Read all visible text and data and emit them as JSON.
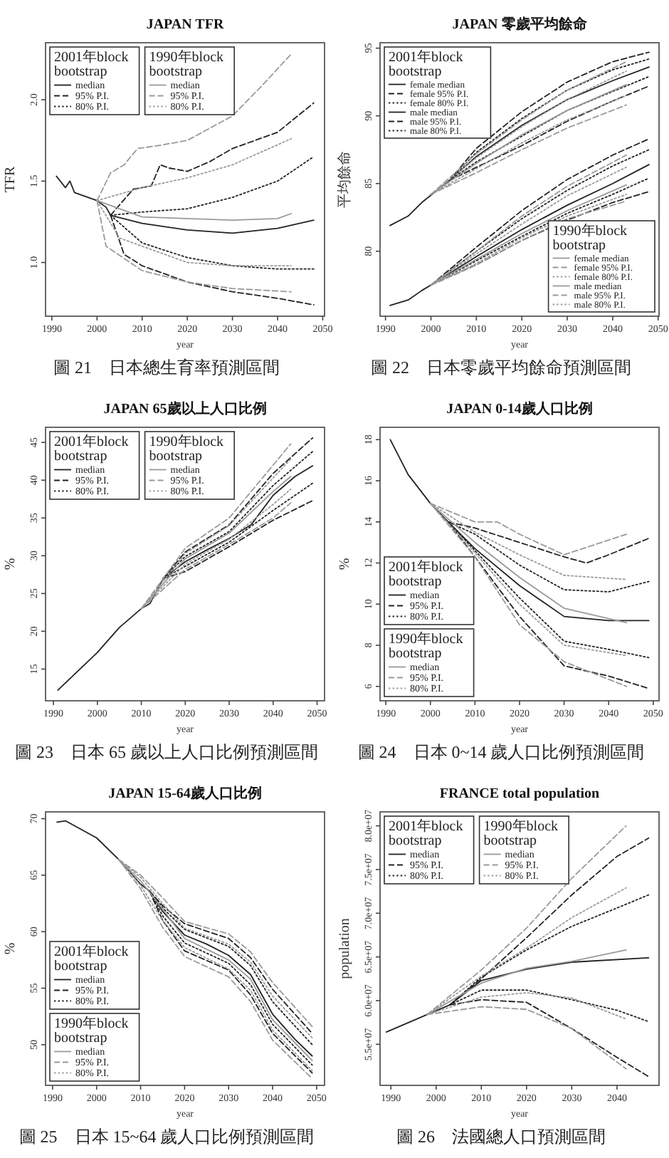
{
  "chart_data": [
    {
      "type": "line",
      "title": "JAPAN TFR",
      "xlabel": "year",
      "ylabel": "TFR",
      "xlim": [
        1988.6,
        2050.4
      ],
      "ylim": [
        0.67,
        2.35
      ],
      "xticks": [
        1990,
        2000,
        2010,
        2020,
        2030,
        2040,
        2050
      ],
      "yticks": [
        {
          "value": 1,
          "label": "1.0"
        },
        {
          "value": 1.5,
          "label": "1.5"
        },
        {
          "value": 2,
          "label": "2.0"
        }
      ],
      "legend": "top left",
      "legend_title": [
        "2001年block bootstrap",
        "1990年block bootstrap"
      ],
      "annotations": [
        "圖 21　日本總生育率預測區間"
      ],
      "series": [
        {
          "name": "median",
          "color": "#222222",
          "line_style": "solid",
          "x": [
            1991,
            1993,
            1994,
            1995,
            1997,
            2000,
            2002,
            2003,
            2010,
            2020,
            2030,
            2040,
            2048
          ],
          "values": [
            1.53,
            1.46,
            1.5,
            1.43,
            1.41,
            1.38,
            1.34,
            1.29,
            1.24,
            1.2,
            1.18,
            1.21,
            1.26
          ]
        },
        {
          "name": "95% P.I.",
          "color": "#222222",
          "line_style": "dashed",
          "x": [
            2003,
            2008,
            2012,
            2014,
            2016,
            2020,
            2025,
            2030,
            2040,
            2048
          ],
          "values": [
            1.29,
            1.45,
            1.47,
            1.6,
            1.58,
            1.56,
            1.62,
            1.7,
            1.8,
            1.98
          ]
        },
        {
          "color": "#222222",
          "line_style": "dashed",
          "x": [
            2003,
            2006,
            2010,
            2020,
            2030,
            2040,
            2048
          ],
          "values": [
            1.29,
            1.05,
            0.98,
            0.88,
            0.82,
            0.78,
            0.74
          ]
        },
        {
          "name": "80% P.I.",
          "color": "#222222",
          "line_style": "dotted",
          "x": [
            2003,
            2010,
            2020,
            2030,
            2040,
            2048
          ],
          "values": [
            1.29,
            1.31,
            1.33,
            1.4,
            1.5,
            1.65
          ]
        },
        {
          "color": "#222222",
          "line_style": "dotted",
          "x": [
            2003,
            2010,
            2020,
            2030,
            2040,
            2048
          ],
          "values": [
            1.29,
            1.12,
            1.03,
            0.98,
            0.96,
            0.96
          ]
        },
        {
          "name": "median",
          "color": "#9a9a9a",
          "line_style": "solid",
          "x": [
            2000,
            2010,
            2020,
            2030,
            2040,
            2043
          ],
          "values": [
            1.38,
            1.28,
            1.27,
            1.26,
            1.27,
            1.3
          ]
        },
        {
          "name": "95% P.I.",
          "color": "#9a9a9a",
          "line_style": "dashed",
          "x": [
            2000,
            2003,
            2006,
            2009,
            2014,
            2020,
            2030,
            2037,
            2043
          ],
          "values": [
            1.38,
            1.55,
            1.6,
            1.7,
            1.72,
            1.75,
            1.9,
            2.1,
            2.28
          ]
        },
        {
          "color": "#9a9a9a",
          "line_style": "dashed",
          "x": [
            2000,
            2002,
            2010,
            2020,
            2030,
            2043
          ],
          "values": [
            1.38,
            1.1,
            0.95,
            0.88,
            0.84,
            0.82
          ]
        },
        {
          "name": "80% P.I.",
          "color": "#9a9a9a",
          "line_style": "dotted",
          "x": [
            2000,
            2010,
            2020,
            2030,
            2043
          ],
          "values": [
            1.38,
            1.46,
            1.52,
            1.6,
            1.76
          ]
        },
        {
          "color": "#9a9a9a",
          "line_style": "dotted",
          "x": [
            2000,
            2005,
            2020,
            2030,
            2043
          ],
          "values": [
            1.38,
            1.15,
            1.0,
            0.98,
            0.98
          ]
        }
      ]
    },
    {
      "type": "line",
      "title": "JAPAN 零歲平均餘命",
      "xlabel": "year",
      "ylabel": "平均餘命",
      "xlim": [
        1988.8,
        2050.2
      ],
      "ylim": [
        75.2,
        95.4
      ],
      "xticks": [
        1990,
        2000,
        2010,
        2020,
        2030,
        2040,
        2050
      ],
      "yticks": [
        80,
        85,
        90,
        95
      ],
      "legend": [
        "top left",
        "bottom right"
      ],
      "legend_title": [
        "2001年block bootstrap",
        "1990年block bootstrap"
      ],
      "annotations": [
        "圖 22　日本零歲平均餘命預測區間"
      ],
      "series": [
        {
          "name": "female median",
          "color": "#222222",
          "line_style": "solid",
          "x": [
            1991,
            1995,
            1998,
            2004,
            2010,
            2020,
            2030,
            2040,
            2048
          ],
          "values": [
            81.9,
            82.6,
            83.6,
            85.2,
            87.0,
            89.3,
            91.2,
            92.6,
            93.6
          ]
        },
        {
          "name": "female 95% P.I.",
          "color": "#222222",
          "line_style": "dashed",
          "x": [
            2004,
            2010,
            2020,
            2030,
            2040,
            2048
          ],
          "values": [
            85.2,
            87.6,
            90.3,
            92.5,
            94.0,
            94.7
          ]
        },
        {
          "color": "#222222",
          "line_style": "dashed",
          "x": [
            2004,
            2010,
            2020,
            2030,
            2040,
            2048
          ],
          "values": [
            85.2,
            86.2,
            87.8,
            89.6,
            91.1,
            92.2
          ]
        },
        {
          "name": "female 80% P.I.",
          "color": "#222222",
          "line_style": "dotted",
          "x": [
            2004,
            2010,
            2020,
            2030,
            2040,
            2048
          ],
          "values": [
            85.2,
            87.3,
            89.8,
            91.9,
            93.4,
            94.2
          ]
        },
        {
          "color": "#222222",
          "line_style": "dotted",
          "x": [
            2004,
            2010,
            2020,
            2030,
            2040,
            2048
          ],
          "values": [
            85.2,
            86.6,
            88.5,
            90.4,
            91.8,
            92.9
          ]
        },
        {
          "name": "male median",
          "color": "#222222",
          "line_style": "solid",
          "x": [
            1991,
            1995,
            1998,
            2000,
            2010,
            2020,
            2030,
            2040,
            2048
          ],
          "values": [
            76.0,
            76.4,
            77.1,
            77.5,
            79.6,
            81.6,
            83.4,
            85.0,
            86.4
          ]
        },
        {
          "name": "male 95% P.I.",
          "color": "#222222",
          "line_style": "dashed",
          "x": [
            2000,
            2010,
            2020,
            2030,
            2040,
            2048
          ],
          "values": [
            77.5,
            80.3,
            83.0,
            85.3,
            87.1,
            88.3
          ]
        },
        {
          "color": "#222222",
          "line_style": "dashed",
          "x": [
            2000,
            2010,
            2020,
            2030,
            2040,
            2048
          ],
          "values": [
            77.5,
            79.0,
            80.8,
            82.3,
            83.6,
            84.4
          ]
        },
        {
          "name": "male 80% P.I.",
          "color": "#222222",
          "line_style": "dotted",
          "x": [
            2000,
            2010,
            2020,
            2030,
            2040,
            2048
          ],
          "values": [
            77.5,
            80.0,
            82.4,
            84.5,
            86.3,
            87.5
          ]
        },
        {
          "color": "#222222",
          "line_style": "dotted",
          "x": [
            2000,
            2010,
            2020,
            2030,
            2040,
            2048
          ],
          "values": [
            77.5,
            79.3,
            81.1,
            82.8,
            84.2,
            85.4
          ]
        },
        {
          "name": "female median",
          "color": "#9a9a9a",
          "line_style": "solid",
          "x": [
            2000,
            2010,
            2020,
            2030,
            2043
          ],
          "values": [
            84.2,
            86.5,
            88.6,
            90.4,
            92.3
          ]
        },
        {
          "name": "female 95% P.I.",
          "color": "#9a9a9a",
          "line_style": "dashed",
          "x": [
            2000,
            2010,
            2020,
            2030,
            2043
          ],
          "values": [
            84.2,
            87.2,
            89.7,
            91.9,
            94.0
          ]
        },
        {
          "color": "#9a9a9a",
          "line_style": "dashed",
          "x": [
            2000,
            2010,
            2020,
            2030,
            2043
          ],
          "values": [
            84.2,
            85.8,
            87.5,
            89.1,
            90.8
          ]
        },
        {
          "name": "female 80% P.I.",
          "color": "#9a9a9a",
          "line_style": "dotted",
          "x": [
            2000,
            2010,
            2020,
            2030,
            2043
          ],
          "values": [
            84.2,
            86.9,
            89.2,
            91.2,
            93.3
          ]
        },
        {
          "color": "#9a9a9a",
          "line_style": "dotted",
          "x": [
            2000,
            2010,
            2020,
            2030,
            2043
          ],
          "values": [
            84.2,
            86.1,
            88.0,
            89.7,
            91.5
          ]
        },
        {
          "name": "male median",
          "color": "#9a9a9a",
          "line_style": "solid",
          "x": [
            2000,
            2010,
            2020,
            2030,
            2043
          ],
          "values": [
            77.5,
            79.4,
            81.3,
            83.0,
            84.9
          ]
        },
        {
          "name": "male 95% P.I.",
          "color": "#9a9a9a",
          "line_style": "dashed",
          "x": [
            2000,
            2010,
            2020,
            2030,
            2043
          ],
          "values": [
            77.5,
            80.0,
            82.6,
            84.8,
            87.1
          ]
        },
        {
          "color": "#9a9a9a",
          "line_style": "dashed",
          "x": [
            2000,
            2010,
            2020,
            2030,
            2043
          ],
          "values": [
            77.5,
            79.0,
            80.8,
            82.4,
            83.7
          ]
        },
        {
          "name": "male 80% P.I.",
          "color": "#9a9a9a",
          "line_style": "dotted",
          "x": [
            2000,
            2010,
            2020,
            2030,
            2043
          ],
          "values": [
            77.5,
            79.8,
            82.0,
            84.1,
            86.2
          ]
        },
        {
          "color": "#9a9a9a",
          "line_style": "dotted",
          "x": [
            2000,
            2010,
            2020,
            2030,
            2043
          ],
          "values": [
            77.5,
            79.1,
            81.0,
            82.6,
            84.2
          ]
        }
      ]
    },
    {
      "type": "line",
      "title": "JAPAN 65歲以上人口比例",
      "xlabel": "year",
      "ylabel": "%",
      "xlim": [
        1988.2,
        2051.7
      ],
      "ylim": [
        10.8,
        47.0
      ],
      "xticks": [
        1990,
        2000,
        2010,
        2020,
        2030,
        2040,
        2050
      ],
      "yticks": [
        15,
        20,
        25,
        30,
        35,
        40,
        45
      ],
      "legend": "top left",
      "legend_title": [
        "2001年block bootstrap",
        "1990年block bootstrap"
      ],
      "annotations": [
        "圖 23　日本 65 歲以上人口比例預測區間"
      ],
      "series": [
        {
          "name": "median",
          "color": "#222222",
          "line_style": "solid",
          "x": [
            1991,
            2000,
            2005,
            2010,
            2012,
            2015,
            2020,
            2025,
            2030,
            2035,
            2040,
            2045,
            2049
          ],
          "values": [
            12.2,
            17.2,
            20.5,
            23.0,
            23.7,
            27.0,
            29.2,
            30.8,
            32.3,
            34.1,
            38.0,
            40.5,
            41.9
          ]
        },
        {
          "name": "95% P.I.",
          "color": "#222222",
          "line_style": "dashed",
          "x": [
            2015,
            2020,
            2030,
            2040,
            2049
          ],
          "values": [
            27.0,
            30.5,
            34.1,
            40.9,
            45.6
          ]
        },
        {
          "color": "#222222",
          "line_style": "dashed",
          "x": [
            2015,
            2020,
            2030,
            2040,
            2049
          ],
          "values": [
            27.0,
            27.9,
            31.2,
            34.7,
            37.3
          ]
        },
        {
          "name": "80% P.I.",
          "color": "#222222",
          "line_style": "dotted",
          "x": [
            2015,
            2020,
            2030,
            2040,
            2049
          ],
          "values": [
            27.0,
            29.9,
            33.2,
            39.3,
            43.8
          ]
        },
        {
          "color": "#222222",
          "line_style": "dotted",
          "x": [
            2015,
            2020,
            2030,
            2040,
            2049
          ],
          "values": [
            27.0,
            28.6,
            31.8,
            36.0,
            39.6
          ]
        },
        {
          "name": "median",
          "color": "#9a9a9a",
          "line_style": "solid",
          "x": [
            2010,
            2020,
            2030,
            2040,
            2044
          ],
          "values": [
            23.0,
            29.6,
            33.0,
            38.5,
            40.5
          ]
        },
        {
          "name": "95% P.I.",
          "color": "#9a9a9a",
          "line_style": "dashed",
          "x": [
            2010,
            2020,
            2030,
            2040,
            2044
          ],
          "values": [
            23.0,
            31.0,
            35.0,
            42.0,
            44.8
          ]
        },
        {
          "color": "#9a9a9a",
          "line_style": "dashed",
          "x": [
            2010,
            2020,
            2030,
            2040,
            2044
          ],
          "values": [
            23.0,
            28.2,
            31.5,
            35.0,
            37.0
          ]
        },
        {
          "name": "80% P.I.",
          "color": "#9a9a9a",
          "line_style": "dotted",
          "x": [
            2010,
            2020,
            2030,
            2040,
            2044
          ],
          "values": [
            23.0,
            30.3,
            34.0,
            40.3,
            42.8
          ]
        },
        {
          "color": "#9a9a9a",
          "line_style": "dotted",
          "x": [
            2010,
            2020,
            2030,
            2040,
            2044
          ],
          "values": [
            23.0,
            28.9,
            32.2,
            36.8,
            38.8
          ]
        }
      ]
    },
    {
      "type": "line",
      "title": "JAPAN 0-14歲人口比例",
      "xlabel": "year",
      "ylabel": "%",
      "xlim": [
        1988.7,
        2051.3
      ],
      "ylim": [
        5.3,
        18.6
      ],
      "xticks": [
        1990,
        2000,
        2010,
        2020,
        2030,
        2040,
        2050
      ],
      "yticks": [
        6,
        8,
        10,
        12,
        14,
        16,
        18
      ],
      "legend": "bottom left",
      "legend_title": [
        "2001年block bootstrap",
        "1990年block bootstrap"
      ],
      "annotations": [
        "圖 24　日本 0~14 歲人口比例預測區間"
      ],
      "series": [
        {
          "name": "median",
          "color": "#222222",
          "line_style": "solid",
          "x": [
            1991,
            1995,
            2000,
            2004,
            2010,
            2020,
            2030,
            2040,
            2049
          ],
          "values": [
            18.0,
            16.3,
            14.9,
            14.0,
            12.7,
            10.9,
            9.4,
            9.2,
            9.2
          ]
        },
        {
          "name": "95% P.I.",
          "color": "#222222",
          "line_style": "dashed",
          "x": [
            2004,
            2010,
            2020,
            2030,
            2035,
            2040,
            2049
          ],
          "values": [
            14.0,
            13.7,
            13.0,
            12.3,
            12.0,
            12.4,
            13.2
          ]
        },
        {
          "color": "#222222",
          "line_style": "dashed",
          "x": [
            2004,
            2010,
            2020,
            2030,
            2040,
            2049
          ],
          "values": [
            14.0,
            12.3,
            9.4,
            7.0,
            6.5,
            5.9
          ]
        },
        {
          "name": "80% P.I.",
          "color": "#222222",
          "line_style": "dotted",
          "x": [
            2004,
            2010,
            2020,
            2030,
            2040,
            2049
          ],
          "values": [
            14.0,
            13.4,
            11.9,
            10.7,
            10.6,
            11.1
          ]
        },
        {
          "color": "#222222",
          "line_style": "dotted",
          "x": [
            2004,
            2010,
            2020,
            2030,
            2040,
            2049
          ],
          "values": [
            14.0,
            12.6,
            10.3,
            8.2,
            7.8,
            7.4
          ]
        },
        {
          "name": "median",
          "color": "#9a9a9a",
          "line_style": "solid",
          "x": [
            2000,
            2010,
            2020,
            2030,
            2044
          ],
          "values": [
            14.9,
            13.0,
            11.3,
            9.8,
            9.1
          ]
        },
        {
          "name": "95% P.I.",
          "color": "#9a9a9a",
          "line_style": "dashed",
          "x": [
            2000,
            2010,
            2015,
            2020,
            2030,
            2044
          ],
          "values": [
            14.9,
            14.0,
            14.0,
            13.4,
            12.4,
            13.4
          ]
        },
        {
          "color": "#9a9a9a",
          "line_style": "dashed",
          "x": [
            2000,
            2010,
            2020,
            2030,
            2044
          ],
          "values": [
            14.9,
            12.3,
            9.0,
            7.2,
            6.0
          ]
        },
        {
          "name": "80% P.I.",
          "color": "#9a9a9a",
          "line_style": "dotted",
          "x": [
            2000,
            2010,
            2020,
            2030,
            2044
          ],
          "values": [
            14.9,
            13.5,
            12.4,
            11.4,
            11.2
          ]
        },
        {
          "color": "#9a9a9a",
          "line_style": "dotted",
          "x": [
            2000,
            2010,
            2020,
            2030,
            2044
          ],
          "values": [
            14.9,
            12.5,
            10.0,
            8.0,
            7.5
          ]
        }
      ]
    },
    {
      "type": "line",
      "title": "JAPAN 15-64歲人口比例",
      "xlabel": "year",
      "ylabel": "%",
      "xlim": [
        1988.4,
        2051.8
      ],
      "ylim": [
        46.4,
        70.6
      ],
      "xticks": [
        1990,
        2000,
        2010,
        2020,
        2030,
        2040,
        2050
      ],
      "yticks": [
        50,
        55,
        60,
        65,
        70
      ],
      "legend": "bottom left",
      "legend_title": [
        "2001年block bootstrap",
        "1990年block bootstrap"
      ],
      "annotations": [
        "圖 25　日本 15~64 歲人口比例預測區間"
      ],
      "series": [
        {
          "name": "median",
          "color": "#222222",
          "line_style": "solid",
          "x": [
            1991,
            1993,
            2000,
            2005,
            2010,
            2012,
            2015,
            2020,
            2025,
            2030,
            2035,
            2040,
            2045,
            2049
          ],
          "values": [
            69.7,
            69.8,
            68.3,
            66.4,
            64.2,
            63.6,
            61.8,
            59.7,
            58.9,
            57.9,
            56.2,
            52.7,
            50.5,
            49.0
          ]
        },
        {
          "name": "95% P.I.",
          "color": "#222222",
          "line_style": "dashed",
          "x": [
            2012,
            2015,
            2020,
            2030,
            2035,
            2040,
            2049
          ],
          "values": [
            63.6,
            62.3,
            60.7,
            59.4,
            57.7,
            54.9,
            51.0
          ]
        },
        {
          "color": "#222222",
          "line_style": "dashed",
          "x": [
            2012,
            2015,
            2020,
            2030,
            2035,
            2040,
            2049
          ],
          "values": [
            63.6,
            61.0,
            58.3,
            56.6,
            54.4,
            51.0,
            47.5
          ]
        },
        {
          "name": "80% P.I.",
          "color": "#222222",
          "line_style": "dotted",
          "x": [
            2012,
            2015,
            2020,
            2030,
            2035,
            2040,
            2049
          ],
          "values": [
            63.6,
            62.1,
            60.2,
            58.7,
            57.0,
            53.8,
            50.0
          ]
        },
        {
          "color": "#222222",
          "line_style": "dotted",
          "x": [
            2012,
            2015,
            2020,
            2030,
            2035,
            2040,
            2049
          ],
          "values": [
            63.6,
            61.4,
            59.0,
            57.2,
            55.3,
            51.8,
            48.2
          ]
        },
        {
          "name": "median",
          "color": "#9a9a9a",
          "line_style": "solid",
          "x": [
            2005,
            2010,
            2015,
            2020,
            2030,
            2035,
            2040,
            2049
          ],
          "values": [
            66.4,
            64.5,
            62.0,
            59.4,
            57.5,
            55.8,
            52.2,
            48.6
          ]
        },
        {
          "name": "95% P.I.",
          "color": "#9a9a9a",
          "line_style": "dashed",
          "x": [
            2005,
            2010,
            2015,
            2020,
            2030,
            2035,
            2040,
            2049
          ],
          "values": [
            66.4,
            65.0,
            63.0,
            60.9,
            59.8,
            58.2,
            55.5,
            51.6
          ]
        },
        {
          "color": "#9a9a9a",
          "line_style": "dashed",
          "x": [
            2005,
            2010,
            2015,
            2020,
            2030,
            2035,
            2040,
            2049
          ],
          "values": [
            66.4,
            63.8,
            60.4,
            57.8,
            56.0,
            53.8,
            50.4,
            47.0
          ]
        },
        {
          "name": "80% P.I.",
          "color": "#9a9a9a",
          "line_style": "dotted",
          "x": [
            2005,
            2010,
            2015,
            2020,
            2030,
            2035,
            2040,
            2049
          ],
          "values": [
            66.4,
            64.8,
            62.5,
            60.3,
            58.9,
            57.3,
            54.3,
            50.6
          ]
        },
        {
          "color": "#9a9a9a",
          "line_style": "dotted",
          "x": [
            2005,
            2010,
            2015,
            2020,
            2030,
            2035,
            2040,
            2049
          ],
          "values": [
            66.4,
            64.1,
            61.0,
            58.6,
            56.7,
            54.8,
            51.3,
            47.7
          ]
        }
      ]
    },
    {
      "type": "line",
      "title": "FRANCE total population",
      "xlabel": "year",
      "ylabel": "population",
      "xlim": [
        1987.6,
        2049.3
      ],
      "ylim": [
        50300000,
        81600000
      ],
      "xticks": [
        1990,
        2000,
        2010,
        2020,
        2030,
        2040
      ],
      "yticks": [
        {
          "value": 55000000,
          "label": "5.5e+07"
        },
        {
          "value": 60000000,
          "label": "6.0e+07"
        },
        {
          "value": 65000000,
          "label": "6.5e+07"
        },
        {
          "value": 70000000,
          "label": "7.0e+07"
        },
        {
          "value": 75000000,
          "label": "7.5e+07"
        },
        {
          "value": 80000000,
          "label": "8.0e+07"
        }
      ],
      "legend": "top left",
      "legend_title": [
        "2001年block bootstrap",
        "1990年block bootstrap"
      ],
      "annotations": [
        "圖 26　法國總人口預測區間"
      ],
      "series": [
        {
          "name": "median",
          "color": "#222222",
          "line_style": "solid",
          "x": [
            1989,
            1998,
            2003,
            2010,
            2020,
            2030,
            2047
          ],
          "values": [
            56400000,
            58400000,
            59500000,
            62300000,
            63600000,
            64400000,
            64900000
          ]
        },
        {
          "name": "95% P.I.",
          "color": "#222222",
          "line_style": "dashed",
          "x": [
            2003,
            2010,
            2020,
            2030,
            2040,
            2047
          ],
          "values": [
            59500000,
            62500000,
            67200000,
            72100000,
            76500000,
            78600000
          ]
        },
        {
          "color": "#222222",
          "line_style": "dashed",
          "x": [
            2003,
            2010,
            2020,
            2030,
            2040,
            2047
          ],
          "values": [
            59500000,
            60100000,
            59800000,
            56800000,
            53500000,
            51300000
          ]
        },
        {
          "name": "80% P.I.",
          "color": "#222222",
          "line_style": "dotted",
          "x": [
            2003,
            2010,
            2020,
            2030,
            2040,
            2047
          ],
          "values": [
            59500000,
            62700000,
            65800000,
            68500000,
            70600000,
            72100000
          ]
        },
        {
          "color": "#222222",
          "line_style": "dotted",
          "x": [
            2003,
            2010,
            2020,
            2030,
            2040,
            2047
          ],
          "values": [
            59500000,
            61200000,
            61200000,
            60100000,
            58900000,
            57600000
          ]
        },
        {
          "name": "median",
          "color": "#9a9a9a",
          "line_style": "solid",
          "x": [
            1998,
            2010,
            2020,
            2030,
            2042
          ],
          "values": [
            58400000,
            62000000,
            63700000,
            64500000,
            65800000
          ]
        },
        {
          "name": "95% P.I.",
          "color": "#9a9a9a",
          "line_style": "dashed",
          "x": [
            1998,
            2010,
            2020,
            2030,
            2042
          ],
          "values": [
            58400000,
            63500000,
            68300000,
            74000000,
            80000000
          ]
        },
        {
          "color": "#9a9a9a",
          "line_style": "dashed",
          "x": [
            1998,
            2010,
            2020,
            2030,
            2042
          ],
          "values": [
            58400000,
            59300000,
            59000000,
            56800000,
            52200000
          ]
        },
        {
          "name": "80% P.I.",
          "color": "#9a9a9a",
          "line_style": "dotted",
          "x": [
            1998,
            2010,
            2020,
            2030,
            2042
          ],
          "values": [
            58400000,
            62800000,
            66000000,
            69500000,
            72900000
          ]
        },
        {
          "color": "#9a9a9a",
          "line_style": "dotted",
          "x": [
            1998,
            2010,
            2020,
            2030,
            2042
          ],
          "values": [
            58400000,
            60400000,
            60900000,
            60300000,
            57900000
          ]
        }
      ]
    }
  ]
}
